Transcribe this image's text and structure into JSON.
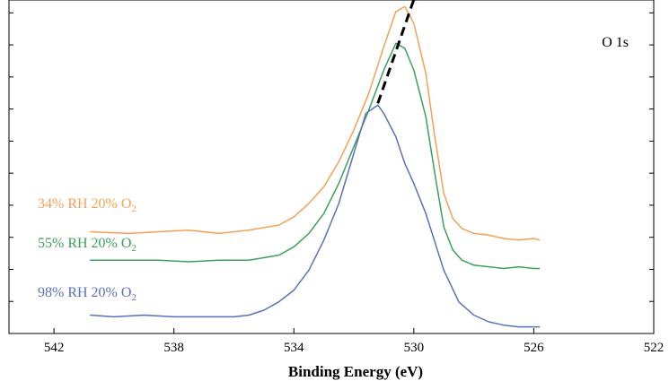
{
  "chart_data": {
    "type": "line",
    "title": "",
    "xlabel": "Binding Energy (eV)",
    "ylabel": "",
    "x_reversed": true,
    "xlim": [
      543.5,
      522
    ],
    "ylim": [
      0,
      10
    ],
    "x_ticks": [
      542,
      538,
      534,
      530,
      526,
      522
    ],
    "y_ticks_count": 10,
    "y_tick_labels_shown": false,
    "grid": false,
    "legend": "inline labels at left",
    "annotation": "O 1s",
    "peak_guide": {
      "style": "dashed",
      "color": "#000000",
      "x": [
        531.2,
        530.0
      ],
      "y": [
        6.9,
        10.0
      ]
    },
    "series": [
      {
        "name": "34% RH 20% O",
        "subscript": "2",
        "color": "#f5a055",
        "x": [
          540.8,
          539.5,
          538.5,
          537.5,
          536.5,
          535.5,
          534.5,
          534.0,
          533.5,
          533.0,
          532.5,
          532.0,
          531.5,
          531.0,
          530.6,
          530.3,
          530.0,
          529.6,
          529.3,
          529.0,
          528.7,
          528.4,
          528.0,
          527.5,
          527.0,
          526.5,
          526.0,
          525.8
        ],
        "y": [
          3.05,
          3.0,
          3.05,
          3.1,
          3.0,
          3.1,
          3.25,
          3.5,
          3.9,
          4.4,
          5.15,
          6.1,
          7.2,
          8.6,
          9.65,
          9.8,
          9.3,
          7.8,
          5.9,
          4.2,
          3.45,
          3.15,
          3.0,
          2.95,
          2.85,
          2.8,
          2.85,
          2.8
        ]
      },
      {
        "name": "55% RH 20% O",
        "subscript": "2",
        "color": "#3aa15a",
        "x": [
          540.8,
          539.5,
          538.5,
          537.5,
          536.5,
          535.5,
          534.5,
          534.0,
          533.5,
          533.0,
          532.5,
          532.0,
          531.5,
          531.0,
          530.6,
          530.3,
          530.0,
          529.6,
          529.3,
          529.0,
          528.7,
          528.4,
          528.0,
          527.5,
          527.0,
          526.5,
          526.0,
          525.8
        ],
        "y": [
          2.2,
          2.2,
          2.2,
          2.15,
          2.2,
          2.2,
          2.35,
          2.6,
          3.0,
          3.6,
          4.5,
          5.6,
          6.7,
          7.9,
          8.7,
          8.55,
          7.9,
          6.5,
          4.8,
          3.2,
          2.5,
          2.2,
          2.05,
          2.0,
          1.95,
          2.0,
          1.95,
          1.95
        ]
      },
      {
        "name": "98% RH 20% O",
        "subscript": "2",
        "color": "#5b6fbf",
        "x": [
          540.8,
          540.0,
          539.0,
          538.0,
          537.0,
          536.0,
          535.5,
          535.0,
          534.5,
          534.0,
          533.5,
          533.0,
          532.5,
          532.0,
          531.6,
          531.2,
          531.0,
          530.6,
          530.3,
          530.0,
          529.6,
          529.0,
          528.5,
          528.0,
          527.5,
          527.0,
          526.5,
          526.0,
          525.8
        ],
        "y": [
          0.55,
          0.5,
          0.55,
          0.5,
          0.5,
          0.5,
          0.55,
          0.7,
          0.95,
          1.3,
          1.9,
          2.8,
          3.9,
          5.4,
          6.6,
          6.85,
          6.6,
          5.9,
          5.1,
          4.5,
          3.6,
          1.9,
          0.95,
          0.55,
          0.35,
          0.25,
          0.2,
          0.2,
          0.2
        ]
      }
    ]
  }
}
